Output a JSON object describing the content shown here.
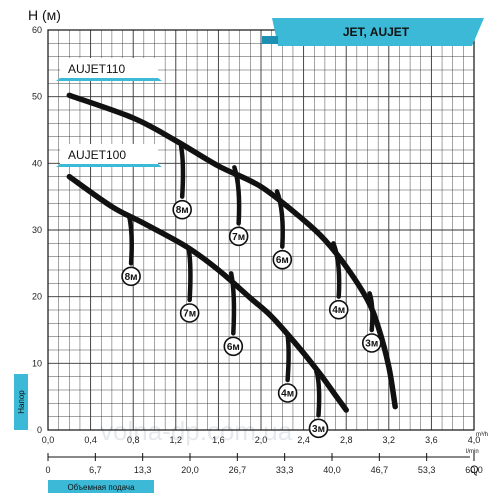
{
  "chart_data": {
    "type": "line",
    "ylabel": "H (м)",
    "banner": "JET, AUJET",
    "side_label": "Напор",
    "bottom_label": "Объемная подача",
    "q_letter": "Q",
    "unit_top": "m³/h",
    "unit_bottom": "l/min",
    "watermark": "volna-dp.com.ua",
    "ylim": [
      0,
      60
    ],
    "xlim": [
      0,
      4
    ],
    "y_ticks": [
      "0",
      "10",
      "20",
      "30",
      "40",
      "50",
      "60"
    ],
    "x_ticks_m3h": [
      "0,0",
      "0,4",
      "0,8",
      "1,2",
      "1,6",
      "2,0",
      "2,4",
      "2,8",
      "3,2",
      "3,6",
      "4,0"
    ],
    "x_ticks_lmin": [
      "0",
      "6,7",
      "13,3",
      "20,0",
      "26,7",
      "33,3",
      "40,0",
      "46,7",
      "53,3",
      "60,0"
    ],
    "series": [
      {
        "name": "AUJET110",
        "x": [
          0.2,
          0.8,
          1.2,
          1.6,
          2.0,
          2.4,
          2.6,
          2.8,
          3.0,
          3.1,
          3.2,
          3.26
        ],
        "y": [
          50.2,
          46.8,
          43.4,
          39.6,
          36.5,
          31.5,
          28.5,
          24.5,
          19.5,
          15.5,
          9.5,
          3.5
        ],
        "callouts": [
          {
            "text": "8м",
            "x": 1.25,
            "y": 42.5,
            "lx": 1.26,
            "ly": 35.0
          },
          {
            "text": "7м",
            "x": 1.75,
            "y": 39.4,
            "lx": 1.79,
            "ly": 31.0
          },
          {
            "text": "6м",
            "x": 2.15,
            "y": 35.8,
            "lx": 2.2,
            "ly": 27.5
          },
          {
            "text": "4м",
            "x": 2.68,
            "y": 28.0,
            "lx": 2.73,
            "ly": 20.0
          },
          {
            "text": "3м",
            "x": 3.02,
            "y": 20.5,
            "lx": 3.04,
            "ly": 15.0
          }
        ]
      },
      {
        "name": "AUJET100",
        "x": [
          0.2,
          0.6,
          0.9,
          1.3,
          1.6,
          1.9,
          2.1,
          2.35,
          2.55,
          2.7,
          2.8
        ],
        "y": [
          38.0,
          33.5,
          31.0,
          27.5,
          24.0,
          19.8,
          17.0,
          12.5,
          8.5,
          5.2,
          3.0
        ],
        "callouts": [
          {
            "text": "8м",
            "x": 0.76,
            "y": 32.2,
            "lx": 0.78,
            "ly": 25.0
          },
          {
            "text": "7м",
            "x": 1.32,
            "y": 27.3,
            "lx": 1.33,
            "ly": 19.5
          },
          {
            "text": "6м",
            "x": 1.72,
            "y": 23.5,
            "lx": 1.74,
            "ly": 14.5
          },
          {
            "text": "4м",
            "x": 2.25,
            "y": 14.2,
            "lx": 2.25,
            "ly": 7.5
          },
          {
            "text": "3м",
            "x": 2.52,
            "y": 9.0,
            "lx": 2.54,
            "ly": 2.2
          }
        ]
      }
    ]
  }
}
